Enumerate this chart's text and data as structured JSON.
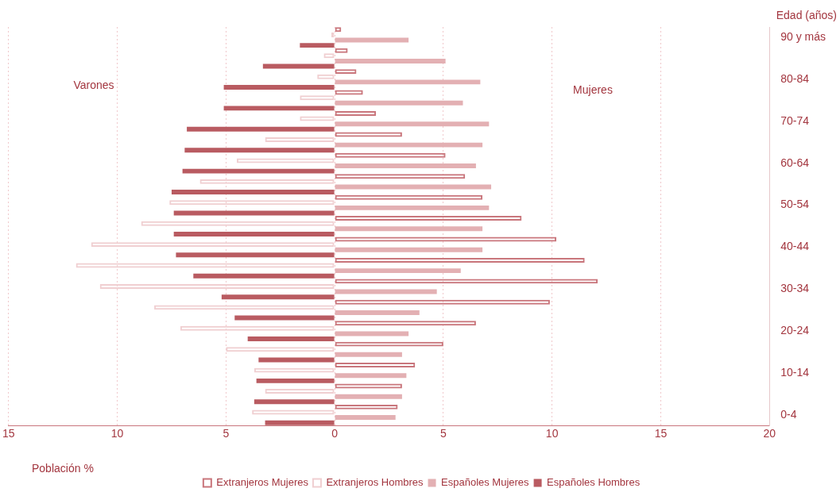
{
  "chart_data": {
    "type": "bar",
    "orientation": "horizontal",
    "xlabel": "Población %",
    "ylabel": "Edad (años)",
    "annotations": [
      "Varones",
      "Mujeres"
    ],
    "categories": [
      "90 y más",
      null,
      "80-84",
      null,
      "70-74",
      null,
      "60-64",
      null,
      "50-54",
      null,
      "40-44",
      null,
      "30-34",
      null,
      "20-24",
      null,
      "10-14",
      null,
      "0-4"
    ],
    "series": [
      {
        "name": "Extranjeros Mujeres",
        "color": "#c9767c",
        "values": [
          0.3,
          0.6,
          1.0,
          1.3,
          1.9,
          3.1,
          5.1,
          6.0,
          6.8,
          8.6,
          10.2,
          11.5,
          12.1,
          9.9,
          6.5,
          5.0,
          3.7,
          3.1,
          2.9
        ]
      },
      {
        "name": "Extranjeros Hombres",
        "color": "#f0cfd1",
        "values": [
          -0.15,
          -0.5,
          -0.8,
          -1.6,
          -1.6,
          -3.2,
          -4.5,
          -6.2,
          -7.6,
          -8.9,
          -11.2,
          -11.9,
          -10.8,
          -8.3,
          -7.1,
          -5.0,
          -3.7,
          -3.2,
          -3.8
        ]
      },
      {
        "name": "Españoles Mujeres",
        "color": "#e3b0b3",
        "values": [
          3.4,
          5.1,
          6.7,
          5.9,
          7.1,
          6.8,
          6.5,
          7.2,
          7.1,
          6.8,
          6.8,
          5.8,
          4.7,
          3.9,
          3.4,
          3.1,
          3.3,
          3.1,
          2.8
        ]
      },
      {
        "name": "Españoles Hombres",
        "color": "#b95b61",
        "values": [
          -1.6,
          -3.3,
          -5.1,
          -5.1,
          -6.8,
          -6.9,
          -7.0,
          -7.5,
          -7.4,
          -7.4,
          -7.3,
          -6.5,
          -5.2,
          -4.6,
          -4.0,
          -3.5,
          -3.6,
          -3.7,
          -3.2
        ]
      }
    ],
    "xlim": [
      -15,
      20
    ],
    "xticks": [
      {
        "value": -15,
        "label": "15"
      },
      {
        "value": -10,
        "label": "10"
      },
      {
        "value": -5,
        "label": "5"
      },
      0,
      5,
      10,
      15,
      20
    ],
    "grid": "x",
    "legend": "bottom"
  }
}
